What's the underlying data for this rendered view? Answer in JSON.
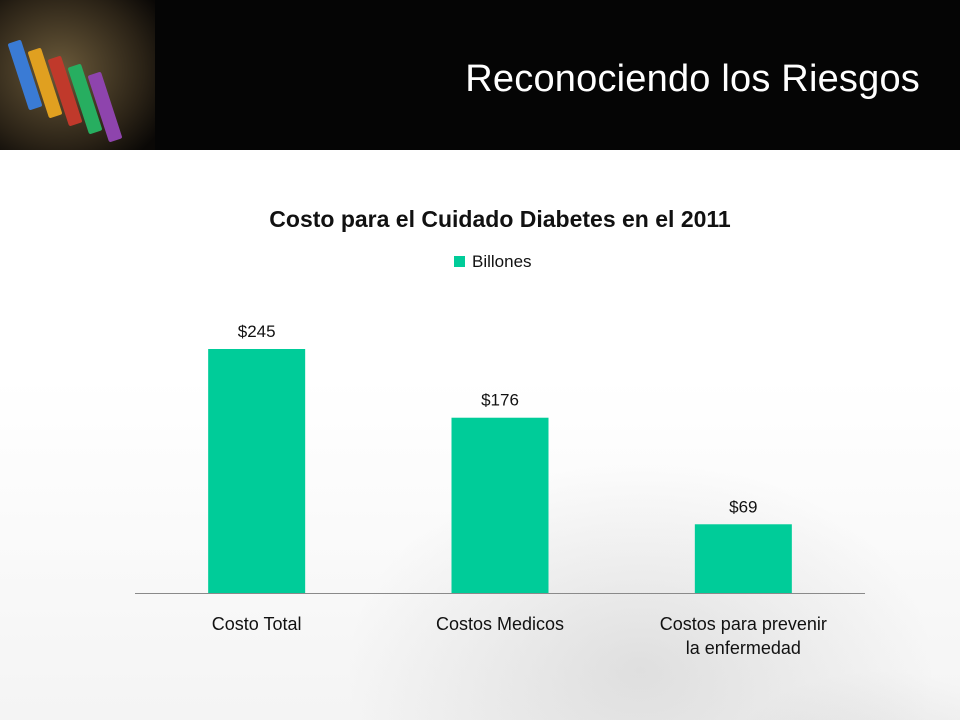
{
  "header": {
    "title": "Reconociendo los Riesgos"
  },
  "colors": {
    "header_bg": "#050505",
    "bar": "#00CC99"
  },
  "decor": {
    "header_image": "medical-stethoscope-image",
    "background_image": "faded-stethoscope-watermark"
  },
  "chart_data": {
    "type": "bar",
    "title": "Costo para el Cuidado Diabetes en el 2011",
    "categories": [
      [
        "Costo Total"
      ],
      [
        "Costos Medicos"
      ],
      [
        "Costos para prevenir",
        "la enfermedad"
      ]
    ],
    "series": [
      {
        "name": "Billones",
        "values": [
          245,
          176,
          69
        ],
        "labels": [
          "$245",
          "$176",
          "$69"
        ],
        "color": "#00CC99"
      }
    ],
    "ylim": [
      0,
      300
    ],
    "grid": false,
    "legend": "top",
    "xlabel": "",
    "ylabel": ""
  }
}
